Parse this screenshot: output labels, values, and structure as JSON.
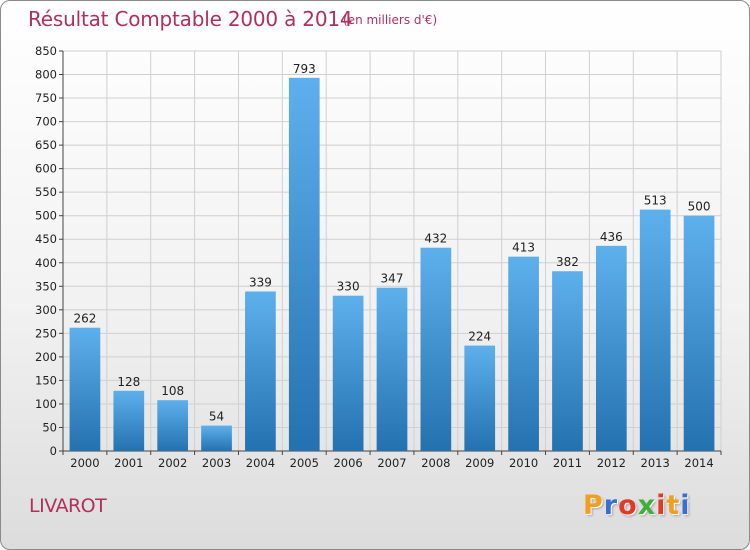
{
  "chart_data": {
    "type": "bar",
    "title": "Résultat Comptable 2000 à 2014",
    "subtitle": "(en milliers d'€)",
    "categories": [
      "2000",
      "2001",
      "2002",
      "2003",
      "2004",
      "2005",
      "2006",
      "2007",
      "2008",
      "2009",
      "2010",
      "2011",
      "2012",
      "2013",
      "2014"
    ],
    "values": [
      262,
      128,
      108,
      54,
      339,
      793,
      330,
      347,
      432,
      224,
      413,
      382,
      436,
      513,
      500
    ],
    "ylim": [
      0,
      850
    ],
    "yticks": [
      0,
      50,
      100,
      150,
      200,
      250,
      300,
      350,
      400,
      450,
      500,
      550,
      600,
      650,
      700,
      750,
      800,
      850
    ],
    "grid": true,
    "xlabel": "",
    "ylabel": ""
  },
  "footer": {
    "city": "LIVAROT",
    "logo_letters": [
      "P",
      "r",
      "o",
      "x",
      "i",
      "t",
      "i"
    ],
    "logo_colors": [
      "#f0a020",
      "#3a6fd0",
      "#e03a2a",
      "#3fae3a",
      "#e03a2a",
      "#f0a020",
      "#3a6fd0"
    ]
  },
  "colors": {
    "bar_top": "#5eb0ec",
    "bar_bottom": "#2471b0",
    "text_accent": "#b0305a"
  }
}
